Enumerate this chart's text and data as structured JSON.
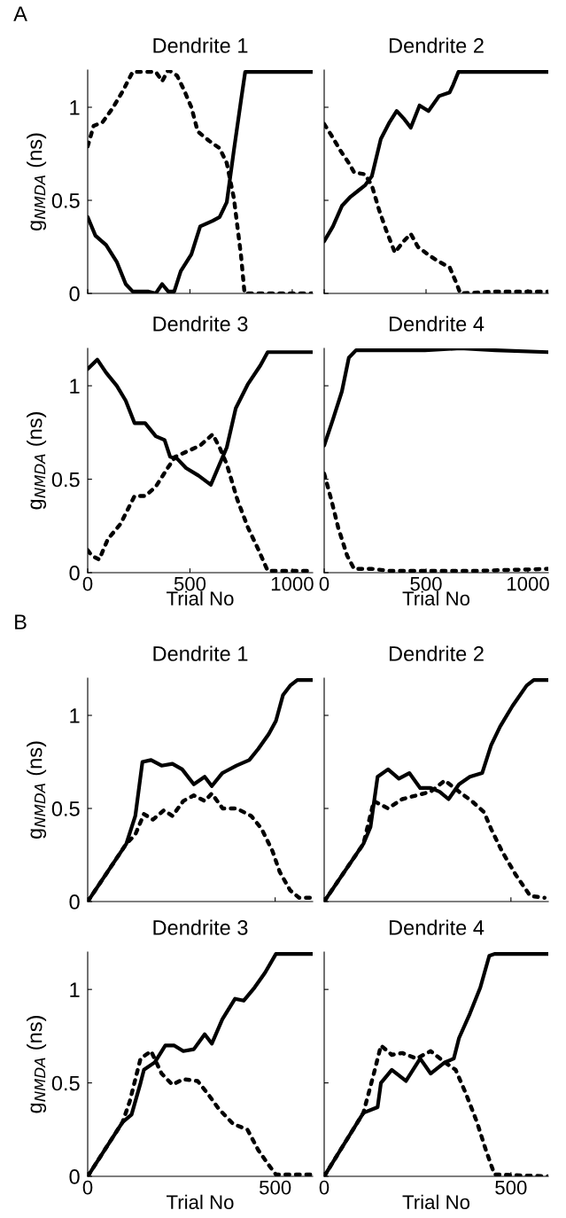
{
  "chart_data": [
    {
      "type": "line",
      "title": "Dendrite 1",
      "ylabel": "g$_{NMDA}$ (ns)",
      "annotations": [
        "A"
      ],
      "xlim": [
        0,
        1100
      ],
      "xticks": [
        0,
        500,
        1000
      ],
      "ylim": [
        0,
        1.2
      ],
      "yticks": [
        0,
        0.5,
        1
      ],
      "tick_labels": "y",
      "series": [
        {
          "color": "#000000",
          "line_style": "solid",
          "x": [
            0,
            38,
            90,
            142,
            186,
            220,
            298,
            333,
            364,
            394,
            423,
            455,
            507,
            550,
            611,
            645,
            680,
            715,
            750,
            770,
            1100
          ],
          "values": [
            0.41,
            0.31,
            0.26,
            0.17,
            0.05,
            0.01,
            0.01,
            0.0,
            0.05,
            0.01,
            0.01,
            0.12,
            0.21,
            0.36,
            0.39,
            0.41,
            0.49,
            0.77,
            1.04,
            1.19,
            1.19
          ]
        },
        {
          "color": "#000000",
          "line_style": "dotted",
          "x": [
            0,
            29,
            73,
            125,
            173,
            220,
            290,
            333,
            364,
            394,
            437,
            472,
            507,
            538,
            593,
            645,
            680,
            715,
            750,
            767,
            1100
          ],
          "values": [
            0.79,
            0.9,
            0.92,
            1.0,
            1.09,
            1.19,
            1.19,
            1.19,
            1.14,
            1.2,
            1.17,
            1.09,
            1.0,
            0.87,
            0.82,
            0.78,
            0.7,
            0.51,
            0.2,
            0.0,
            0.0
          ]
        }
      ]
    },
    {
      "type": "line",
      "title": "Dendrite 2",
      "xlim": [
        0,
        1100
      ],
      "xticks": [
        0,
        500,
        1000
      ],
      "ylim": [
        0,
        1.2
      ],
      "yticks": [
        0,
        0.5,
        1
      ],
      "tick_labels": false,
      "series": [
        {
          "color": "#000000",
          "line_style": "solid",
          "x": [
            0,
            43,
            87,
            130,
            165,
            200,
            234,
            278,
            321,
            356,
            390,
            425,
            468,
            512,
            564,
            616,
            633,
            659,
            1098
          ],
          "values": [
            0.28,
            0.36,
            0.47,
            0.52,
            0.55,
            0.58,
            0.63,
            0.83,
            0.92,
            0.98,
            0.94,
            0.89,
            1.01,
            0.98,
            1.06,
            1.08,
            1.12,
            1.19,
            1.19
          ]
        },
        {
          "color": "#000000",
          "line_style": "dotted",
          "x": [
            0,
            35,
            78,
            121,
            147,
            200,
            234,
            269,
            304,
            347,
            390,
            425,
            460,
            521,
            564,
            616,
            651,
            668,
            841,
            1098
          ],
          "values": [
            0.91,
            0.85,
            0.77,
            0.7,
            0.65,
            0.64,
            0.58,
            0.45,
            0.34,
            0.22,
            0.28,
            0.32,
            0.25,
            0.2,
            0.17,
            0.14,
            0.05,
            0.0,
            0.01,
            0.01
          ]
        }
      ]
    },
    {
      "type": "line",
      "title": "Dendrite 3",
      "ylabel": "g$_{NMDA}$ (ns)",
      "xlabel": "Trial No",
      "xlim": [
        0,
        1100
      ],
      "xticks": [
        0,
        500,
        1000
      ],
      "ylim": [
        0,
        1.2
      ],
      "yticks": [
        0,
        0.5,
        1
      ],
      "series": [
        {
          "color": "#000000",
          "line_style": "solid",
          "x": [
            0,
            47,
            90,
            142,
            186,
            229,
            281,
            333,
            376,
            403,
            437,
            481,
            541,
            602,
            637,
            680,
            724,
            784,
            845,
            880,
            1100
          ],
          "values": [
            1.09,
            1.14,
            1.07,
            1.0,
            0.92,
            0.8,
            0.8,
            0.73,
            0.71,
            0.62,
            0.61,
            0.56,
            0.52,
            0.47,
            0.56,
            0.67,
            0.88,
            1.01,
            1.11,
            1.18,
            1.18
          ]
        },
        {
          "color": "#000000",
          "line_style": "dotted",
          "x": [
            0,
            21,
            56,
            99,
            160,
            229,
            281,
            333,
            385,
            428,
            489,
            550,
            611,
            645,
            680,
            732,
            784,
            836,
            880,
            1100
          ],
          "values": [
            0.12,
            0.09,
            0.07,
            0.18,
            0.26,
            0.41,
            0.41,
            0.46,
            0.55,
            0.62,
            0.65,
            0.68,
            0.74,
            0.67,
            0.58,
            0.39,
            0.24,
            0.12,
            0.01,
            0.01
          ]
        }
      ]
    },
    {
      "type": "line",
      "title": "Dendrite 4",
      "xlabel": "Trial No",
      "xlim": [
        0,
        1100
      ],
      "xticks": [
        0,
        500,
        1000
      ],
      "ylim": [
        0,
        1.2
      ],
      "yticks": [
        0,
        0.5,
        1
      ],
      "tick_labels": "x",
      "series": [
        {
          "color": "#000000",
          "line_style": "solid",
          "x": [
            0,
            43,
            87,
            121,
            156,
            321,
            494,
            668,
            841,
            1098
          ],
          "values": [
            0.68,
            0.82,
            0.97,
            1.15,
            1.19,
            1.19,
            1.19,
            1.2,
            1.19,
            1.18
          ]
        },
        {
          "color": "#000000",
          "line_style": "dotted",
          "x": [
            0,
            35,
            69,
            113,
            147,
            234,
            321,
            581,
            754,
            1098
          ],
          "values": [
            0.53,
            0.39,
            0.24,
            0.09,
            0.02,
            0.02,
            0.01,
            0.01,
            0.01,
            0.02
          ]
        }
      ]
    },
    {
      "type": "line",
      "title": "Dendrite 1",
      "ylabel": "g$_{NMDA}$ (ns)",
      "annotations": [
        "B"
      ],
      "xlim": [
        0,
        600
      ],
      "xticks": [
        0,
        500
      ],
      "ylim": [
        0,
        1.2
      ],
      "yticks": [
        0,
        0.5,
        1
      ],
      "tick_labels": "y",
      "series": [
        {
          "color": "#000000",
          "line_style": "solid",
          "x": [
            0,
            103,
            127,
            146,
            169,
            197,
            226,
            252,
            283,
            312,
            331,
            359,
            397,
            431,
            455,
            483,
            502,
            521,
            540,
            559,
            600
          ],
          "values": [
            0.0,
            0.31,
            0.46,
            0.75,
            0.76,
            0.73,
            0.74,
            0.71,
            0.63,
            0.67,
            0.62,
            0.69,
            0.73,
            0.76,
            0.82,
            0.9,
            0.97,
            1.11,
            1.16,
            1.19,
            1.19
          ]
        },
        {
          "color": "#000000",
          "line_style": "dotted",
          "x": [
            0,
            103,
            127,
            150,
            174,
            203,
            226,
            255,
            283,
            312,
            331,
            360,
            397,
            436,
            464,
            493,
            512,
            540,
            564,
            600
          ],
          "values": [
            0.0,
            0.31,
            0.36,
            0.47,
            0.44,
            0.49,
            0.46,
            0.54,
            0.57,
            0.54,
            0.58,
            0.5,
            0.5,
            0.46,
            0.39,
            0.27,
            0.16,
            0.06,
            0.02,
            0.02
          ]
        }
      ]
    },
    {
      "type": "line",
      "title": "Dendrite 2",
      "xlim": [
        0,
        600
      ],
      "xticks": [
        0,
        500
      ],
      "ylim": [
        0,
        1.2
      ],
      "yticks": [
        0,
        0.5,
        1
      ],
      "tick_labels": false,
      "series": [
        {
          "color": "#000000",
          "line_style": "solid",
          "x": [
            0,
            105,
            124,
            143,
            171,
            200,
            228,
            257,
            285,
            309,
            333,
            361,
            390,
            423,
            447,
            471,
            504,
            542,
            561,
            600
          ],
          "values": [
            0.0,
            0.31,
            0.4,
            0.67,
            0.71,
            0.66,
            0.69,
            0.61,
            0.61,
            0.59,
            0.55,
            0.63,
            0.67,
            0.69,
            0.84,
            0.94,
            1.05,
            1.16,
            1.19,
            1.19
          ]
        },
        {
          "color": "#000000",
          "line_style": "dotted",
          "x": [
            0,
            105,
            133,
            171,
            209,
            247,
            285,
            323,
            361,
            395,
            428,
            447,
            476,
            514,
            552,
            590
          ],
          "values": [
            0.0,
            0.31,
            0.54,
            0.5,
            0.55,
            0.57,
            0.59,
            0.65,
            0.59,
            0.54,
            0.48,
            0.39,
            0.27,
            0.14,
            0.03,
            0.02
          ]
        }
      ]
    },
    {
      "type": "line",
      "title": "Dendrite 3",
      "ylabel": "g$_{NMDA}$ (ns)",
      "xlabel": "Trial No",
      "xlim": [
        0,
        600
      ],
      "xticks": [
        0,
        500
      ],
      "ylim": [
        0,
        1.2
      ],
      "yticks": [
        0,
        0.5,
        1
      ],
      "series": [
        {
          "color": "#000000",
          "line_style": "solid",
          "x": [
            0,
            93,
            117,
            141,
            150,
            179,
            207,
            231,
            255,
            283,
            312,
            331,
            359,
            393,
            416,
            445,
            473,
            502,
            600
          ],
          "values": [
            0.0,
            0.29,
            0.33,
            0.5,
            0.57,
            0.61,
            0.7,
            0.7,
            0.67,
            0.68,
            0.76,
            0.71,
            0.84,
            0.95,
            0.94,
            1.01,
            1.09,
            1.19,
            1.19
          ]
        },
        {
          "color": "#000000",
          "line_style": "dotted",
          "x": [
            0,
            93,
            112,
            141,
            169,
            197,
            226,
            255,
            293,
            321,
            350,
            388,
            426,
            455,
            483,
            502,
            600
          ],
          "values": [
            0.0,
            0.29,
            0.4,
            0.63,
            0.67,
            0.55,
            0.49,
            0.52,
            0.51,
            0.44,
            0.36,
            0.28,
            0.25,
            0.14,
            0.06,
            0.01,
            0.01
          ]
        }
      ]
    },
    {
      "type": "line",
      "title": "Dendrite 4",
      "xlabel": "Trial No",
      "xlim": [
        0,
        600
      ],
      "xticks": [
        0,
        500
      ],
      "ylim": [
        0,
        1.2
      ],
      "yticks": [
        0,
        0.5,
        1
      ],
      "tick_labels": "x",
      "series": [
        {
          "color": "#000000",
          "line_style": "solid",
          "x": [
            0,
            105,
            143,
            152,
            181,
            219,
            257,
            285,
            323,
            347,
            361,
            390,
            418,
            442,
            456,
            600
          ],
          "values": [
            0.0,
            0.34,
            0.37,
            0.5,
            0.57,
            0.51,
            0.63,
            0.55,
            0.61,
            0.63,
            0.74,
            0.87,
            1.01,
            1.18,
            1.19,
            1.19
          ]
        },
        {
          "color": "#000000",
          "line_style": "dotted",
          "x": [
            0,
            105,
            133,
            152,
            181,
            209,
            247,
            285,
            323,
            352,
            380,
            409,
            433,
            456,
            600
          ],
          "values": [
            0.0,
            0.34,
            0.55,
            0.7,
            0.65,
            0.66,
            0.63,
            0.67,
            0.61,
            0.57,
            0.44,
            0.29,
            0.14,
            0.01,
            0.0
          ]
        }
      ]
    }
  ]
}
